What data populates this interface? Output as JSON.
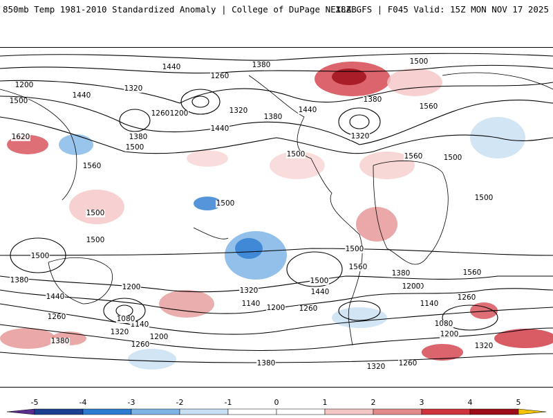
{
  "header": {
    "title": "850mb Temp 1981-2010 Standardized Anomaly | College of DuPage NEXLAB",
    "run_info": "18Z GFS | F045 Valid: 15Z MON NOV 17 2025"
  },
  "contour_labels": [
    "1440",
    "1380",
    "1500",
    "1560",
    "1260",
    "1200",
    "1320",
    "1620",
    "1500",
    "1380",
    "1440",
    "1320",
    "1260",
    "1200",
    "1380",
    "1440",
    "1500",
    "1560",
    "1320",
    "1380",
    "1440",
    "1560",
    "1500",
    "1500",
    "1500",
    "1500",
    "1500",
    "1500",
    "1500",
    "1560",
    "1380",
    "1440",
    "1260",
    "1200",
    "1140",
    "1080",
    "1320",
    "1380",
    "1260",
    "1200",
    "1140",
    "1200",
    "1260",
    "1320",
    "1500",
    "1440",
    "1380",
    "1320",
    "1260",
    "1200",
    "1140",
    "1080",
    "1200",
    "1320",
    "1260",
    "1380",
    "1320",
    "1500",
    "1560"
  ],
  "colorbar": {
    "ticks": [
      "-5",
      "-4",
      "-3",
      "-2",
      "-1",
      "0",
      "1",
      "2",
      "3",
      "4",
      "5"
    ],
    "colors": [
      "#5b2c8e",
      "#1d3f8f",
      "#2c7bd1",
      "#7fb5e6",
      "#c7def3",
      "#ffffff",
      "#ffffff",
      "#f5c6c6",
      "#e38b8b",
      "#d0323c",
      "#9c0b17",
      "#f5c400"
    ]
  }
}
